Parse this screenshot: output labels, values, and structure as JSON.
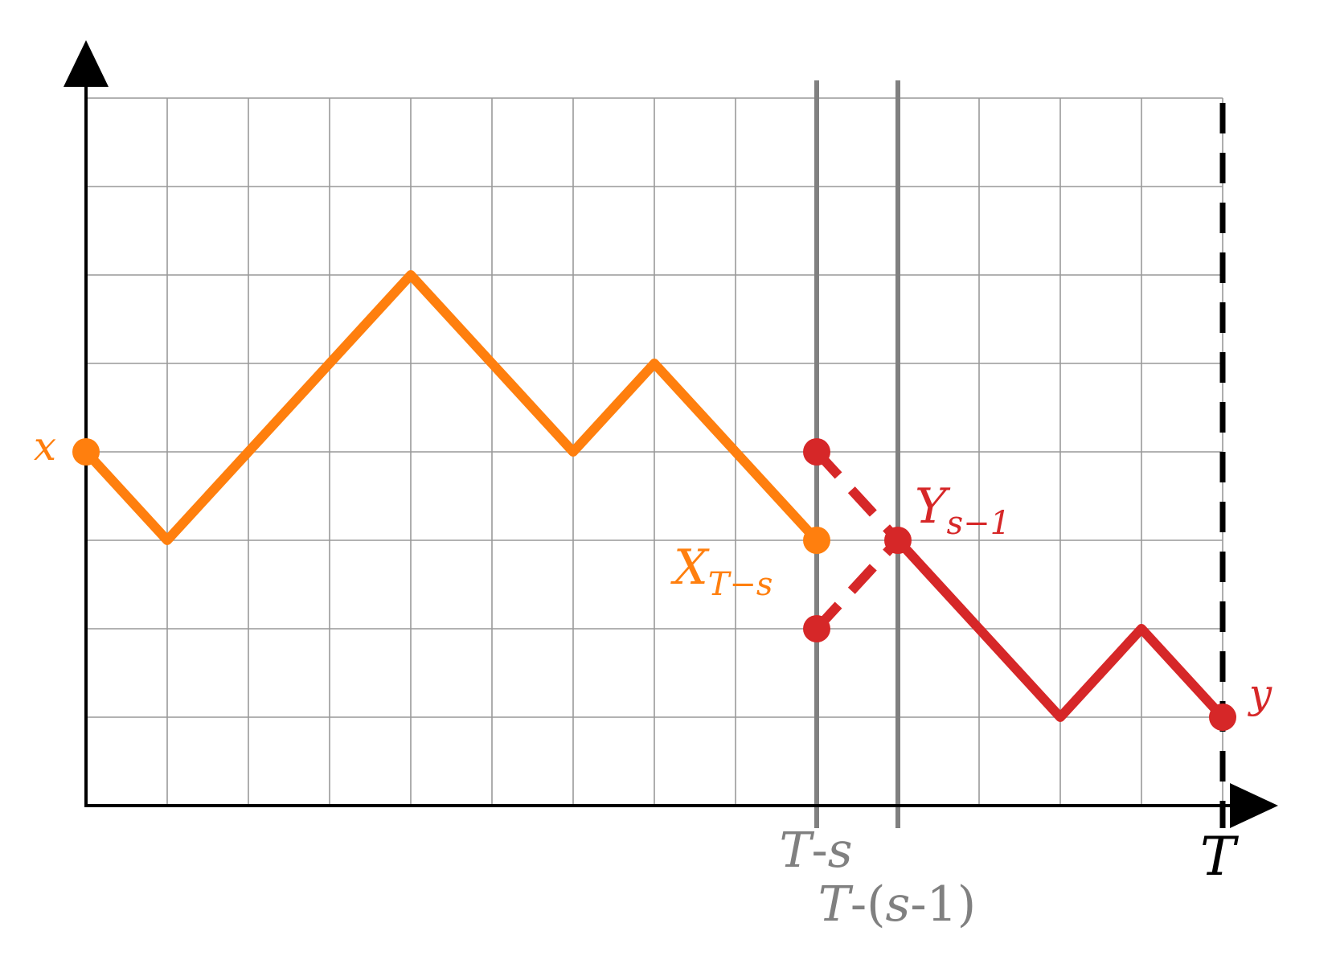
{
  "colors": {
    "x_path": "#ff7f0e",
    "y_path": "#d62728",
    "grid": "#999999",
    "marker_line": "#808080",
    "axis": "#000000"
  },
  "grid": {
    "cols": 14,
    "rows": 8
  },
  "paths": {
    "x_path": {
      "name": "x",
      "points": [
        [
          0,
          4
        ],
        [
          1,
          3
        ],
        [
          2,
          4
        ],
        [
          3,
          5
        ],
        [
          4,
          6
        ],
        [
          5,
          5
        ],
        [
          6,
          4
        ],
        [
          7,
          5
        ],
        [
          8,
          4
        ],
        [
          9,
          3
        ]
      ]
    },
    "y_path": {
      "name": "y",
      "points": [
        [
          10,
          3
        ],
        [
          11,
          2
        ],
        [
          12,
          1
        ],
        [
          13,
          2
        ],
        [
          14,
          1
        ]
      ]
    },
    "reflected_segments": [
      {
        "from": [
          9,
          4
        ],
        "to": [
          10,
          3
        ]
      },
      {
        "from": [
          9,
          2
        ],
        "to": [
          10,
          3
        ]
      }
    ]
  },
  "points": {
    "x_start": [
      0,
      4
    ],
    "x_t_minus_s": [
      9,
      3
    ],
    "y_s_minus_1": [
      10,
      3
    ],
    "y_alt_top": [
      9,
      4
    ],
    "y_alt_bottom": [
      9,
      2
    ],
    "y_end": [
      14,
      1
    ]
  },
  "vertical_markers": [
    9,
    10
  ],
  "labels": {
    "x_start": "x",
    "y_end": "y",
    "x_t_minus_s_main": "X",
    "x_t_minus_s_sub": "T−s",
    "y_s_minus_1_main": "Y",
    "y_s_minus_1_sub": "s−1",
    "tick_t_minus_s_T": "T",
    "tick_t_minus_s_dash": "-",
    "tick_t_minus_s_s": "s",
    "tick_t_minus_s1_T": "T",
    "tick_t_minus_s1_dash": "-",
    "tick_t_minus_s1_open": "(",
    "tick_t_minus_s1_s": "s",
    "tick_t_minus_s1_rest": "-1",
    "tick_t_minus_s1_close": ")",
    "axis_end": "T"
  }
}
